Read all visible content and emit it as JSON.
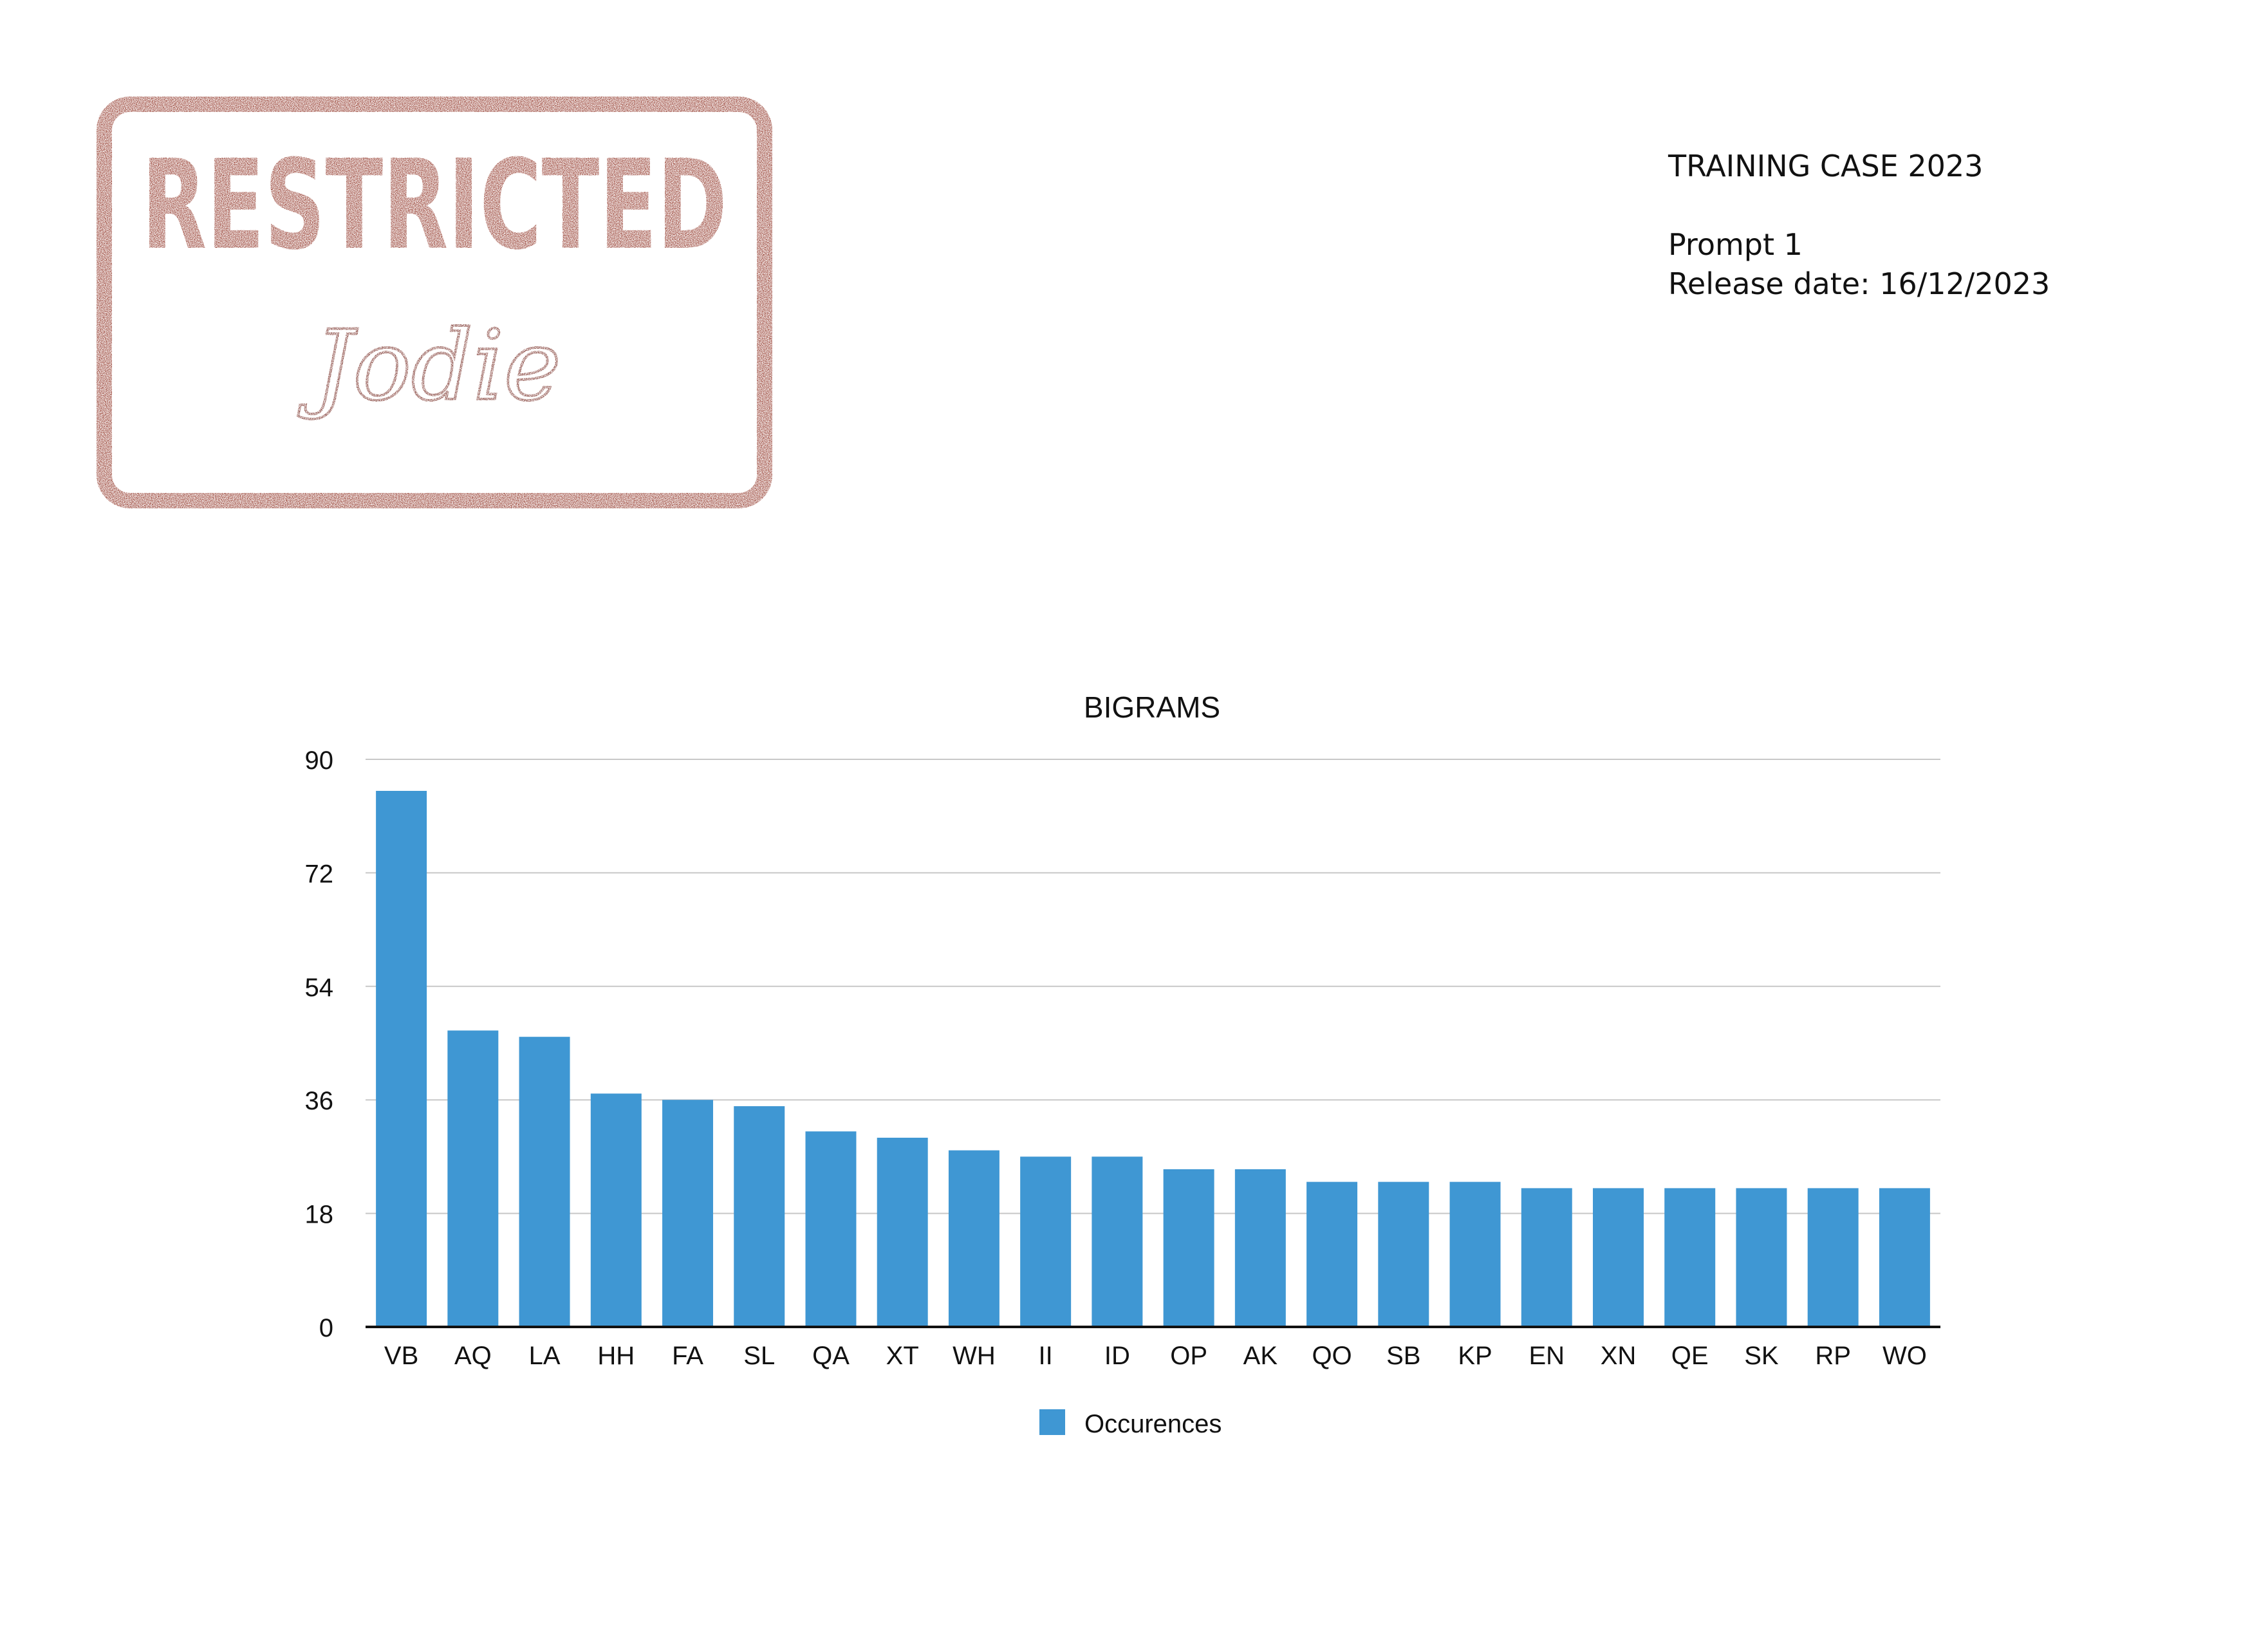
{
  "stamp": {
    "word": "RESTRICTED",
    "signature": "Jodie",
    "color": "#8b2a1c"
  },
  "header": {
    "case_title": "TRAINING CASE 2023",
    "prompt": "Prompt 1",
    "release_date": "Release date: 16/12/2023"
  },
  "chart_data": {
    "type": "bar",
    "title": "BIGRAMS",
    "xlabel": "",
    "ylabel": "",
    "ylim": [
      0,
      90
    ],
    "yticks": [
      0,
      18,
      36,
      54,
      72,
      90
    ],
    "grid": true,
    "legend_position": "bottom",
    "bar_color": "#3f97d3",
    "categories": [
      "VB",
      "AQ",
      "LA",
      "HH",
      "FA",
      "SL",
      "QA",
      "XT",
      "WH",
      "II",
      "ID",
      "OP",
      "AK",
      "QO",
      "SB",
      "KP",
      "EN",
      "XN",
      "QE",
      "SK",
      "RP",
      "WO"
    ],
    "series": [
      {
        "name": "Occurences",
        "values": [
          85,
          47,
          46,
          37,
          36,
          35,
          31,
          30,
          28,
          27,
          27,
          25,
          25,
          23,
          23,
          23,
          22,
          22,
          22,
          22,
          22,
          22
        ]
      }
    ]
  }
}
